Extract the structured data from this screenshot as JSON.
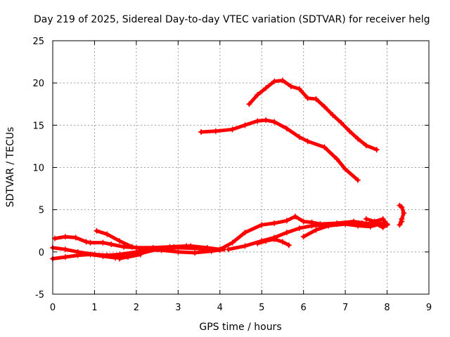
{
  "chart_data": {
    "type": "scatter",
    "title": "Day 219 of 2025, Sidereal Day-to-day VTEC variation (SDTVAR) for receiver helg",
    "xlabel": "GPS time / hours",
    "ylabel": "SDTVAR / TECUs",
    "xlim": [
      0,
      9
    ],
    "ylim": [
      -5,
      25
    ],
    "xticks": [
      "0",
      "1",
      "2",
      "3",
      "4",
      "5",
      "6",
      "7",
      "8",
      "9"
    ],
    "yticks": [
      "-5",
      "0",
      "5",
      "10",
      "15",
      "20",
      "25"
    ],
    "grid": true,
    "marker": "plus",
    "color": "#ff0000",
    "series": [
      {
        "name": "trace-1",
        "x": [
          0.05,
          0.3,
          0.55,
          0.8,
          0.9,
          1.2,
          1.4,
          1.7,
          2.0,
          2.4,
          2.8,
          3.2
        ],
        "y": [
          1.6,
          1.8,
          1.7,
          1.2,
          1.1,
          1.1,
          0.9,
          0.6,
          0.5,
          0.5,
          0.6,
          0.7
        ]
      },
      {
        "name": "trace-2",
        "x": [
          0.0,
          0.3,
          0.6,
          1.0,
          1.3,
          1.6,
          2.0,
          2.5,
          3.0,
          3.5,
          4.0
        ],
        "y": [
          0.5,
          0.3,
          0.0,
          -0.3,
          -0.4,
          -0.3,
          0.0,
          0.3,
          0.5,
          0.4,
          0.2
        ]
      },
      {
        "name": "trace-3",
        "x": [
          0.0,
          0.3,
          0.6,
          0.9,
          1.2,
          1.5,
          1.8,
          2.1
        ],
        "y": [
          -0.8,
          -0.6,
          -0.4,
          -0.3,
          -0.5,
          -0.7,
          -0.6,
          -0.3
        ]
      },
      {
        "name": "trace-4",
        "x": [
          1.05,
          1.3,
          1.6,
          1.9,
          2.2,
          2.6,
          3.0,
          3.4,
          3.8,
          4.1
        ],
        "y": [
          2.5,
          2.1,
          1.3,
          0.6,
          0.3,
          0.2,
          0.0,
          -0.1,
          0.1,
          0.3
        ]
      },
      {
        "name": "trace-5",
        "x": [
          1.6,
          2.0,
          2.5,
          2.9,
          3.3,
          3.7,
          4.0
        ],
        "y": [
          -0.8,
          -0.3,
          0.3,
          0.6,
          0.7,
          0.5,
          0.3
        ]
      },
      {
        "name": "trace-6",
        "x": [
          4.0,
          4.3,
          4.6,
          5.0,
          5.3,
          5.6,
          5.8,
          6.0,
          6.2,
          6.4,
          6.8,
          7.2,
          7.6,
          7.9
        ],
        "y": [
          0.3,
          1.1,
          2.3,
          3.2,
          3.4,
          3.7,
          4.2,
          3.6,
          3.5,
          3.3,
          3.4,
          3.6,
          3.3,
          3.4
        ]
      },
      {
        "name": "trace-7",
        "x": [
          4.2,
          4.6,
          5.0,
          5.3,
          5.6,
          5.9,
          6.2,
          6.5,
          6.8,
          7.1,
          7.4,
          7.7,
          8.0
        ],
        "y": [
          0.3,
          0.7,
          1.3,
          1.7,
          2.3,
          2.8,
          3.1,
          3.2,
          3.3,
          3.4,
          3.4,
          3.3,
          3.3
        ]
      },
      {
        "name": "trace-8",
        "x": [
          4.9,
          5.1,
          5.3,
          5.5,
          5.65
        ],
        "y": [
          1.0,
          1.3,
          1.5,
          1.2,
          0.8
        ]
      },
      {
        "name": "trace-9",
        "x": [
          6.0,
          6.3,
          6.6,
          7.0,
          7.3,
          7.6,
          7.9
        ],
        "y": [
          1.8,
          2.6,
          3.1,
          3.3,
          3.1,
          3.0,
          3.4
        ]
      },
      {
        "name": "trace-10",
        "x": [
          3.55,
          3.9,
          4.3,
          4.6,
          4.9,
          5.1,
          5.3,
          5.6,
          5.9,
          6.1,
          6.5,
          6.8,
          7.0,
          7.3
        ],
        "y": [
          14.2,
          14.3,
          14.5,
          15.0,
          15.5,
          15.6,
          15.4,
          14.6,
          13.6,
          13.1,
          12.4,
          11.0,
          9.8,
          8.5
        ]
      },
      {
        "name": "trace-11",
        "x": [
          4.7,
          4.9,
          5.1,
          5.3,
          5.5,
          5.7,
          5.9,
          6.1,
          6.3,
          6.5,
          6.7,
          6.9,
          7.1,
          7.3,
          7.5,
          7.75
        ],
        "y": [
          17.5,
          18.6,
          19.4,
          20.2,
          20.3,
          19.6,
          19.3,
          18.2,
          18.1,
          17.2,
          16.2,
          15.3,
          14.3,
          13.4,
          12.6,
          12.1
        ]
      },
      {
        "name": "trace-12",
        "x": [
          8.3,
          8.35,
          8.4,
          8.35,
          8.3,
          8.35
        ],
        "y": [
          5.5,
          5.3,
          4.6,
          3.9,
          3.2,
          3.6
        ]
      },
      {
        "name": "trace-13",
        "x": [
          7.5,
          7.7,
          7.9,
          8.0,
          7.9,
          7.7
        ],
        "y": [
          3.9,
          3.6,
          3.9,
          3.2,
          2.9,
          3.4
        ]
      }
    ]
  }
}
